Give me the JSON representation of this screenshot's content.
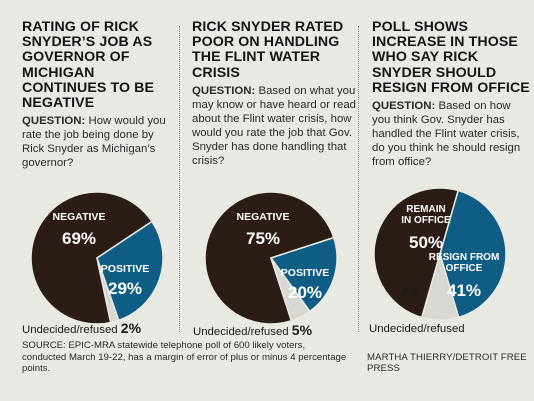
{
  "panels": [
    {
      "title": "RATING OF RICK SNYDER’S JOB AS GOVERNOR OF MICHIGAN CONTINUES TO BE NEGATIVE",
      "question_label": "QUESTION:",
      "question_text": "How would you rate the job being done by Rick Snyder as Michigan’s governor?"
    },
    {
      "title": "RICK SNYDER RATED POOR ON HANDLING THE FLINT WATER CRISIS",
      "question_label": "QUESTION:",
      "question_text": "Based on what you may know or have heard or read about the Flint water crisis, how would you rate the job that Gov. Snyder has done handling that crisis?"
    },
    {
      "title": "POLL SHOWS INCREASE IN THOSE WHO SAY RICK SNYDER SHOULD RESIGN FROM OFFICE",
      "question_label": "QUESTION:",
      "question_text": "Based on how you think Gov. Snyder has handled the Flint water crisis, do you think he should resign from office?"
    }
  ],
  "chart_data": [
    {
      "type": "pie",
      "slices": [
        {
          "label": "NEGATIVE",
          "value": 69,
          "display": "69%",
          "color": "#2b1d16"
        },
        {
          "label": "POSITIVE",
          "value": 29,
          "display": "29%",
          "color": "#0f5d85"
        },
        {
          "label": "Undecided/refused",
          "value": 2,
          "display": "2%",
          "color": "#d8d8d3"
        }
      ]
    },
    {
      "type": "pie",
      "slices": [
        {
          "label": "NEGATIVE",
          "value": 75,
          "display": "75%",
          "color": "#2b1d16"
        },
        {
          "label": "POSITIVE",
          "value": 20,
          "display": "20%",
          "color": "#0f5d85"
        },
        {
          "label": "Undecided/refused",
          "value": 5,
          "display": "5%",
          "color": "#d8d8d3"
        }
      ]
    },
    {
      "type": "pie",
      "slices": [
        {
          "label": "REMAIN IN OFFICE",
          "value": 50,
          "display": "50%",
          "color": "#2b1d16"
        },
        {
          "label": "RESIGN FROM OFFICE",
          "value": 41,
          "display": "41%",
          "color": "#0f5d85"
        },
        {
          "label": "Undecided/refused",
          "value": 9,
          "display": "9%",
          "color": "#d8d8d3"
        }
      ]
    }
  ],
  "undecided_labels": [
    {
      "text": "Undecided/refused",
      "pct": "2%"
    },
    {
      "text": "Undecided/refused",
      "pct": "5%"
    },
    {
      "text": "Undecided/refused",
      "pct": ""
    }
  ],
  "footer": {
    "source": "SOURCE: EPIC-MRA statewide telephone poll of 600 likely voters, conducted March 19-22, has a margin of error of plus or minus 4 percentage points.",
    "credit": "MARTHA THIERRY/DETROIT FREE PRESS"
  }
}
